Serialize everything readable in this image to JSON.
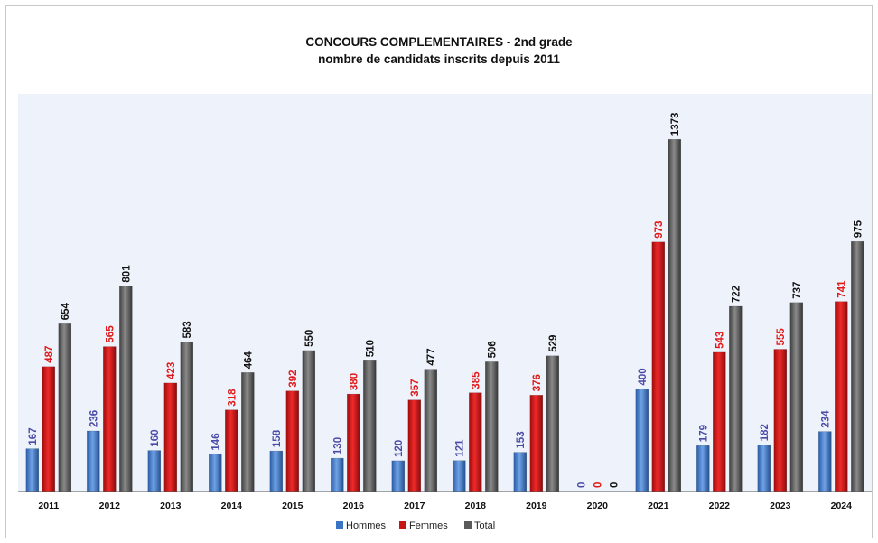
{
  "chart_data": {
    "type": "bar",
    "title": "CONCOURS COMPLEMENTAIRES - 2nd grade",
    "subtitle": "nombre de candidats inscrits depuis 2011",
    "xlabel": "",
    "ylabel": "",
    "ylim": [
      0,
      1550
    ],
    "grid": false,
    "legend_position": "bottom",
    "categories": [
      "2011",
      "2012",
      "2013",
      "2014",
      "2015",
      "2016",
      "2017",
      "2018",
      "2019",
      "2020",
      "2021",
      "2022",
      "2023",
      "2024"
    ],
    "series": [
      {
        "name": "Hommes",
        "color": "#3a74c4",
        "label_color": "#4a4aa8",
        "values": [
          167,
          236,
          160,
          146,
          158,
          130,
          120,
          121,
          153,
          0,
          400,
          179,
          182,
          234
        ]
      },
      {
        "name": "Femmes",
        "color": "#c81414",
        "label_color": "#e01818",
        "values": [
          487,
          565,
          423,
          318,
          392,
          380,
          357,
          385,
          376,
          0,
          973,
          543,
          555,
          741
        ]
      },
      {
        "name": "Total",
        "color": "#5a5a5a",
        "label_color": "#111111",
        "values": [
          654,
          801,
          583,
          464,
          550,
          510,
          477,
          506,
          529,
          0,
          1373,
          722,
          737,
          975
        ]
      }
    ]
  }
}
